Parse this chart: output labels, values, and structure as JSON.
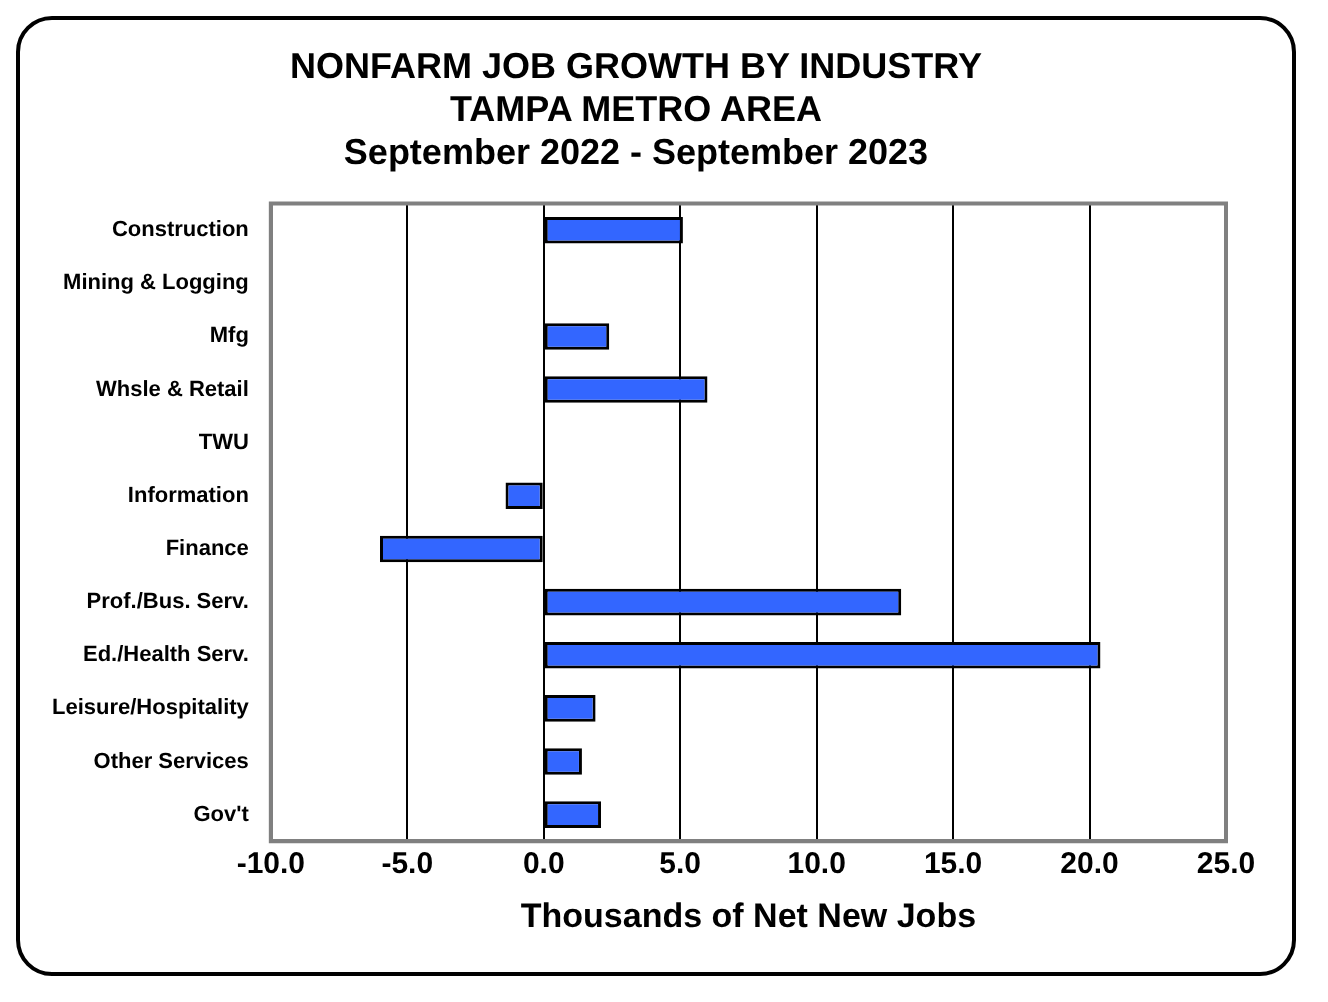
{
  "chart_data": {
    "type": "bar",
    "orientation": "horizontal",
    "title": [
      "NONFARM JOB GROWTH BY INDUSTRY",
      "TAMPA METRO AREA",
      "September 2022 - September 2023"
    ],
    "categories": [
      "Construction",
      "Mining & Logging",
      "Mfg",
      "Whsle & Retail",
      "TWU",
      "Information",
      "Finance",
      "Prof./Bus. Serv.",
      "Ed./Health Serv.",
      "Leisure/Hospitality",
      "Other Services",
      "Gov't"
    ],
    "values": [
      5.1,
      0,
      2.4,
      6.0,
      0,
      -1.4,
      -6.0,
      13.1,
      20.4,
      1.9,
      1.4,
      2.1
    ],
    "color": "#3366ff",
    "xlabel": "Thousands of Net New Jobs",
    "xlim": [
      -10,
      25
    ],
    "xticks": [
      {
        "value": -10,
        "label": "-10.0"
      },
      {
        "value": -5,
        "label": "-5.0"
      },
      {
        "value": 0,
        "label": "0.0"
      },
      {
        "value": 5,
        "label": "5.0"
      },
      {
        "value": 10,
        "label": "10.0"
      },
      {
        "value": 15,
        "label": "15.0"
      },
      {
        "value": 20,
        "label": "20.0"
      },
      {
        "value": 25,
        "label": "25.0"
      }
    ],
    "grid": "x",
    "legend": false
  }
}
